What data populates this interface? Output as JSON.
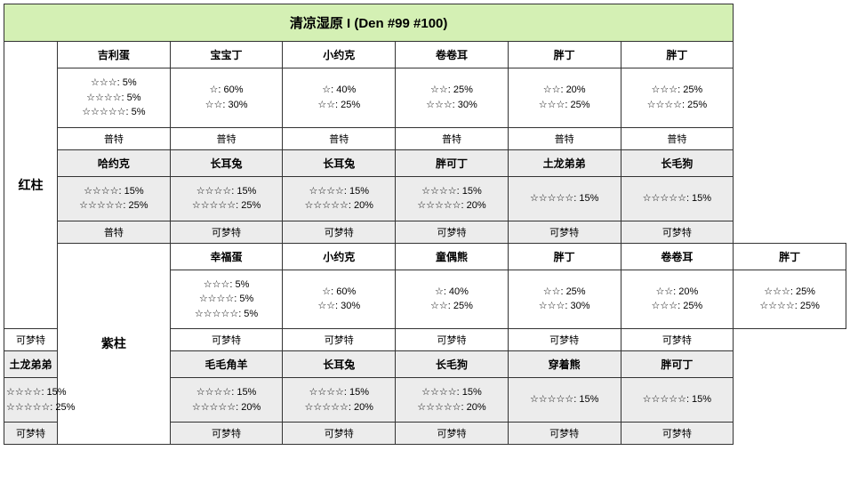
{
  "title": "清凉湿原 I (Den #99 #100)",
  "colors": {
    "header_bg": "#d4f0b4",
    "alt_bg": "#ececec",
    "border": "#333333"
  },
  "fonts": {
    "title_size": 15,
    "label_size": 14,
    "name_size": 12,
    "rate_size": 11
  },
  "columns": 6,
  "pillars": [
    {
      "label": "红柱",
      "top": {
        "names": [
          "吉利蛋",
          "宝宝丁",
          "小约克",
          "卷卷耳",
          "胖丁",
          "胖丁"
        ],
        "rates": [
          [
            "☆☆☆: 5%",
            "☆☆☆☆: 5%",
            "☆☆☆☆☆: 5%"
          ],
          [
            "☆: 60%",
            "☆☆: 30%"
          ],
          [
            "☆: 40%",
            "☆☆: 25%"
          ],
          [
            "☆☆: 25%",
            "☆☆☆: 30%"
          ],
          [
            "☆☆: 20%",
            "☆☆☆: 25%"
          ],
          [
            "☆☆☆: 25%",
            "☆☆☆☆: 25%"
          ]
        ],
        "traits": [
          "普特",
          "普特",
          "普特",
          "普特",
          "普特",
          "普特"
        ]
      },
      "bottom": {
        "names": [
          "哈约克",
          "长耳兔",
          "长耳兔",
          "胖可丁",
          "土龙弟弟",
          "长毛狗"
        ],
        "rates": [
          [
            "☆☆☆☆: 15%",
            "☆☆☆☆☆: 25%"
          ],
          [
            "☆☆☆☆: 15%",
            "☆☆☆☆☆: 25%"
          ],
          [
            "☆☆☆☆: 15%",
            "☆☆☆☆☆: 20%"
          ],
          [
            "☆☆☆☆: 15%",
            "☆☆☆☆☆: 20%"
          ],
          [
            "☆☆☆☆☆: 15%"
          ],
          [
            "☆☆☆☆☆: 15%"
          ]
        ],
        "traits": [
          "普特",
          "可梦特",
          "可梦特",
          "可梦特",
          "可梦特",
          "可梦特"
        ]
      }
    },
    {
      "label": "紫柱",
      "top": {
        "names": [
          "幸福蛋",
          "小约克",
          "童偶熊",
          "胖丁",
          "卷卷耳",
          "胖丁"
        ],
        "rates": [
          [
            "☆☆☆: 5%",
            "☆☆☆☆: 5%",
            "☆☆☆☆☆: 5%"
          ],
          [
            "☆: 60%",
            "☆☆: 30%"
          ],
          [
            "☆: 40%",
            "☆☆: 25%"
          ],
          [
            "☆☆: 25%",
            "☆☆☆: 30%"
          ],
          [
            "☆☆: 20%",
            "☆☆☆: 25%"
          ],
          [
            "☆☆☆: 25%",
            "☆☆☆☆: 25%"
          ]
        ],
        "traits": [
          "可梦特",
          "可梦特",
          "可梦特",
          "可梦特",
          "可梦特",
          "可梦特"
        ]
      },
      "bottom": {
        "names": [
          "土龙弟弟",
          "毛毛角羊",
          "长耳兔",
          "长毛狗",
          "穿着熊",
          "胖可丁"
        ],
        "rates": [
          [
            "☆☆☆☆: 15%",
            "☆☆☆☆☆: 25%"
          ],
          [
            "☆☆☆☆: 15%",
            "☆☆☆☆☆: 20%"
          ],
          [
            "☆☆☆☆: 15%",
            "☆☆☆☆☆: 20%"
          ],
          [
            "☆☆☆☆: 15%",
            "☆☆☆☆☆: 20%"
          ],
          [
            "☆☆☆☆☆: 15%"
          ],
          [
            "☆☆☆☆☆: 15%"
          ]
        ],
        "traits": [
          "可梦特",
          "可梦特",
          "可梦特",
          "可梦特",
          "可梦特",
          "可梦特"
        ]
      }
    }
  ]
}
